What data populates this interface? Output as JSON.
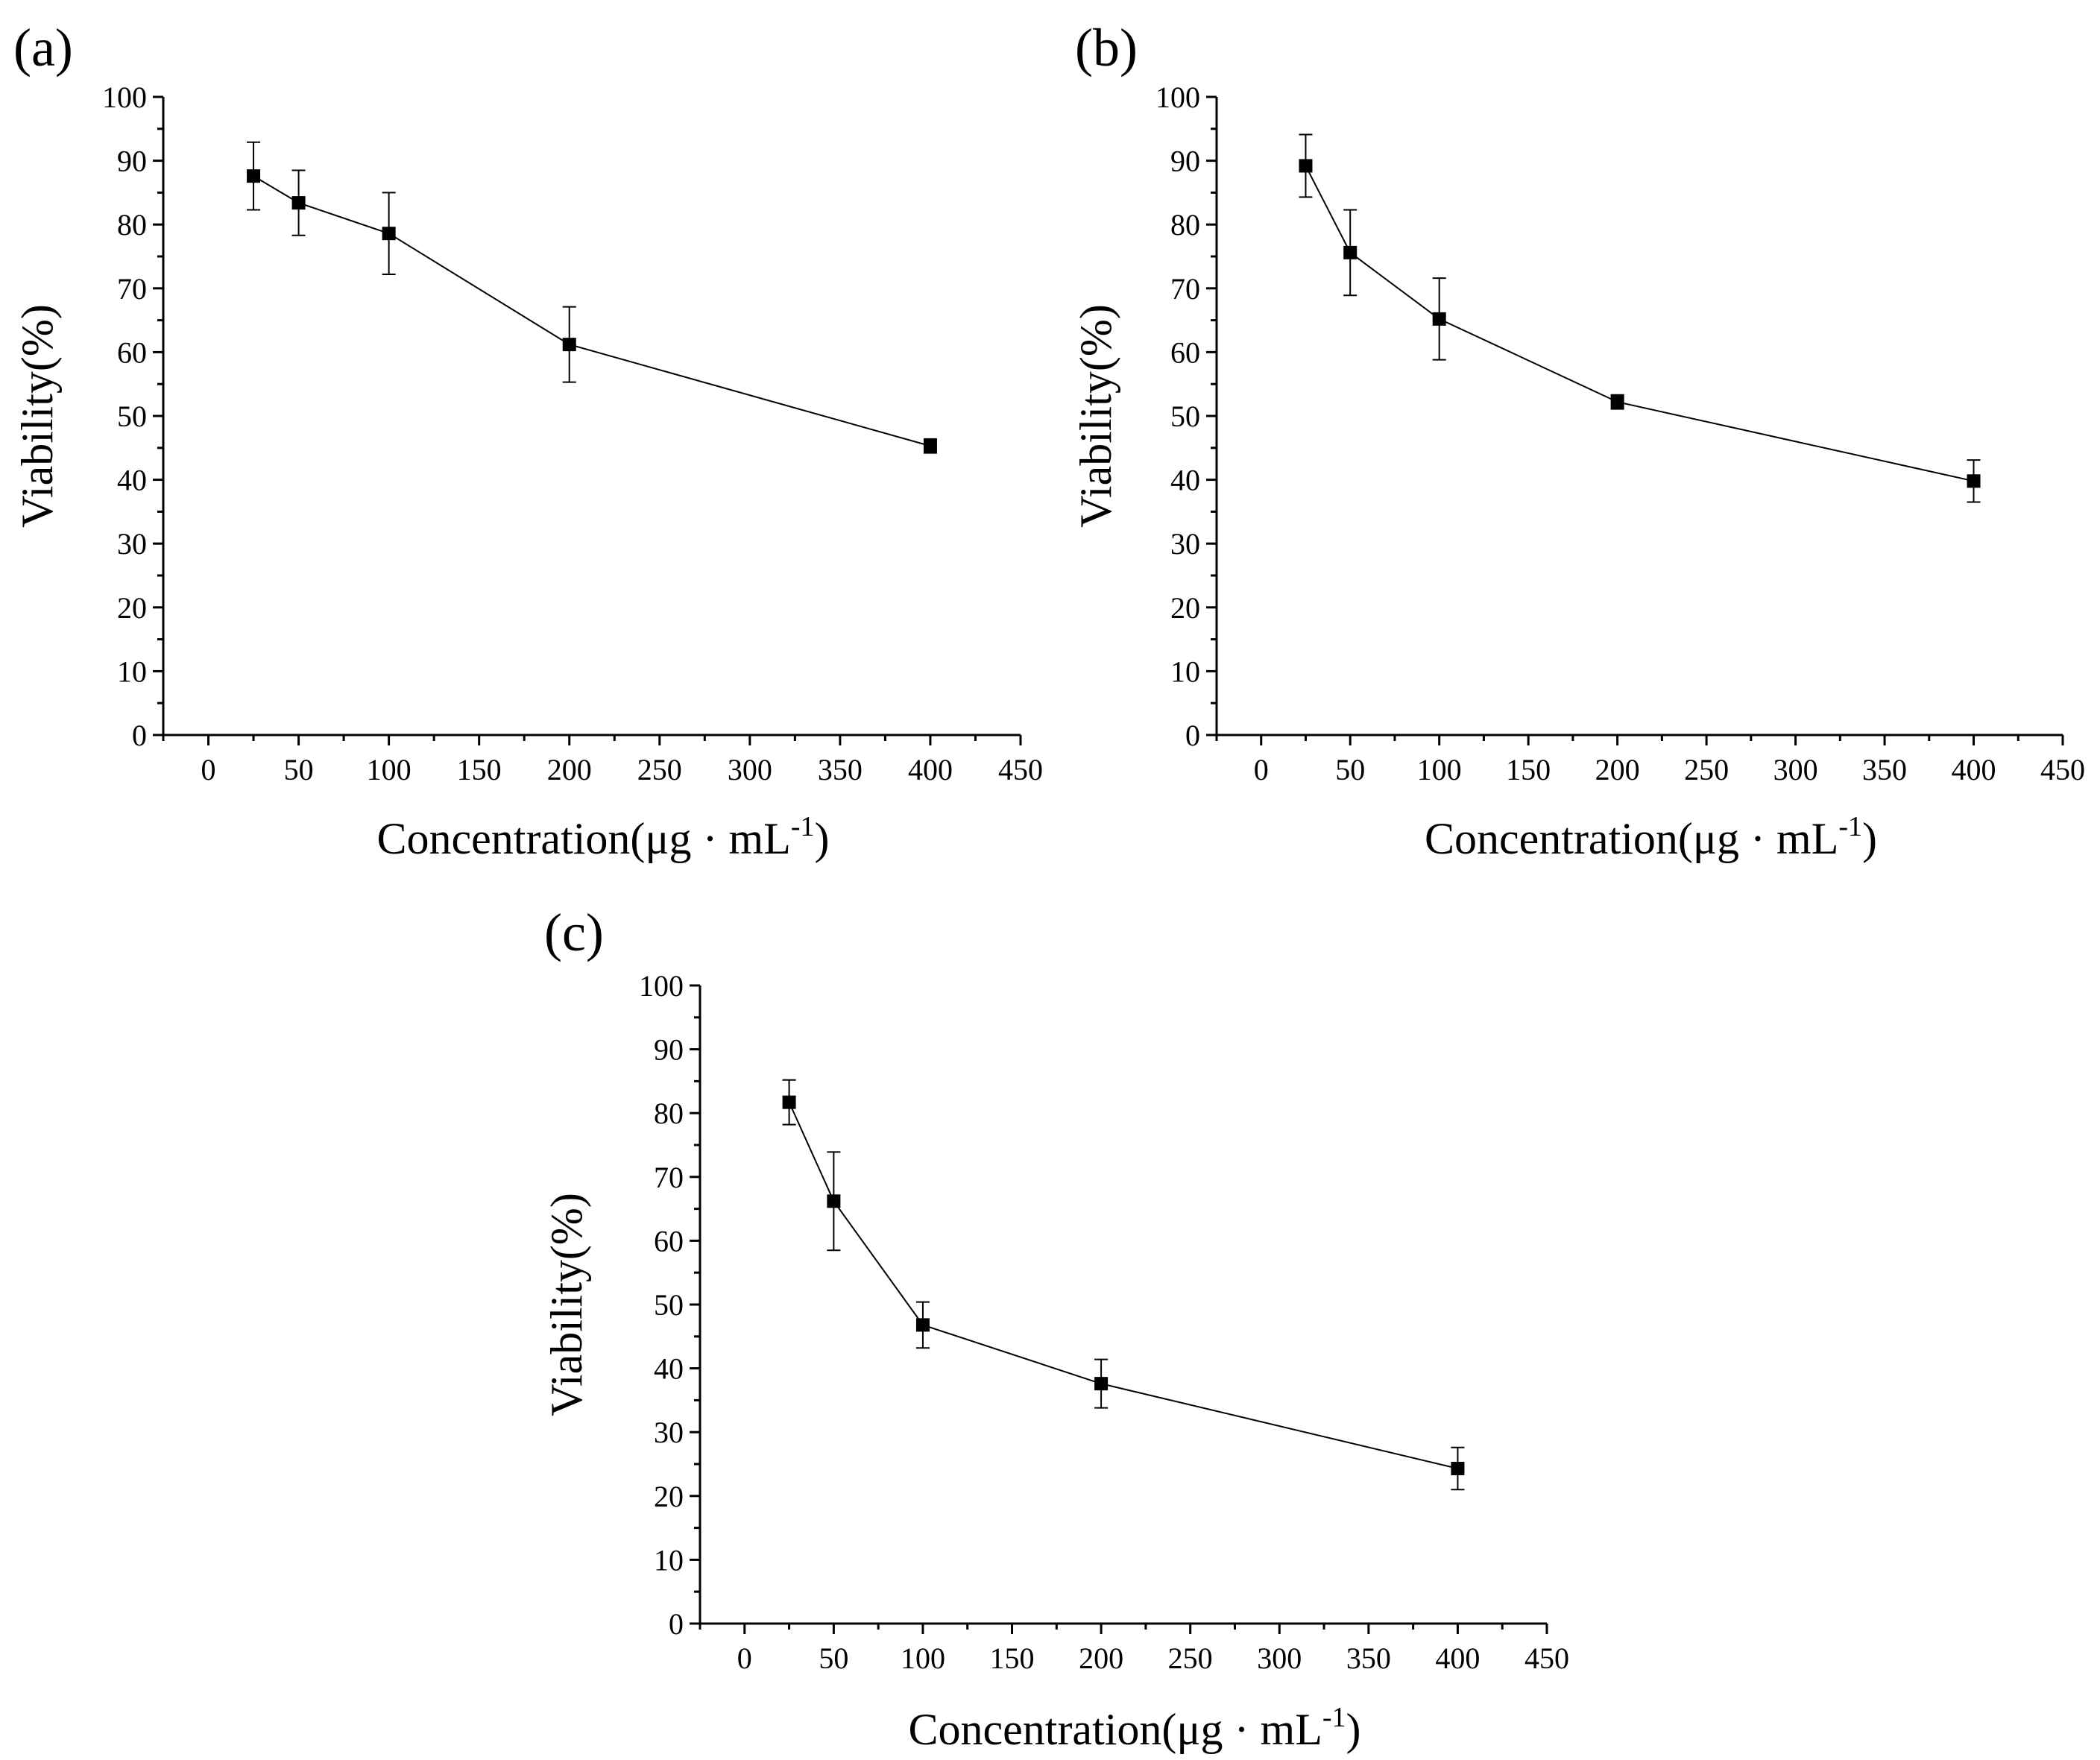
{
  "chart_data": [
    {
      "type": "line",
      "panel": "(a)",
      "xlabel_main": "Concentration(μg · mL",
      "xlabel_sup": "-1",
      "xlabel_end": ")",
      "ylabel": "Viability(%)",
      "xlim": [
        -25,
        450
      ],
      "ylim": [
        0,
        100
      ],
      "xticks": [
        0,
        50,
        100,
        150,
        200,
        250,
        300,
        350,
        400,
        450
      ],
      "yticks": [
        0,
        10,
        20,
        30,
        40,
        50,
        60,
        70,
        80,
        90,
        100
      ],
      "series": [
        {
          "x": [
            25,
            50,
            100,
            200,
            400
          ],
          "y": [
            87.6,
            83.4,
            78.6,
            61.2,
            45.3
          ],
          "err": [
            5.3,
            5.1,
            6.4,
            5.9,
            1.1
          ]
        }
      ]
    },
    {
      "type": "line",
      "panel": "(b)",
      "xlabel_main": "Concentration(μg · mL",
      "xlabel_sup": "-1",
      "xlabel_end": ")",
      "ylabel": "Viability(%)",
      "xlim": [
        -25,
        450
      ],
      "ylim": [
        0,
        100
      ],
      "xticks": [
        0,
        50,
        100,
        150,
        200,
        250,
        300,
        350,
        400,
        450
      ],
      "yticks": [
        0,
        10,
        20,
        30,
        40,
        50,
        60,
        70,
        80,
        90,
        100
      ],
      "series": [
        {
          "x": [
            25,
            50,
            100,
            200,
            400
          ],
          "y": [
            89.2,
            75.6,
            65.2,
            52.2,
            39.8
          ],
          "err": [
            4.9,
            6.7,
            6.4,
            1.1,
            3.3
          ]
        }
      ]
    },
    {
      "type": "line",
      "panel": "(c)",
      "xlabel_main": "Concentration(μg · mL",
      "xlabel_sup": "-1",
      "xlabel_end": ")",
      "ylabel": "Viability(%)",
      "xlim": [
        -25,
        450
      ],
      "ylim": [
        0,
        100
      ],
      "xticks": [
        0,
        50,
        100,
        150,
        200,
        250,
        300,
        350,
        400,
        450
      ],
      "yticks": [
        0,
        10,
        20,
        30,
        40,
        50,
        60,
        70,
        80,
        90,
        100
      ],
      "series": [
        {
          "x": [
            25,
            50,
            100,
            200,
            400
          ],
          "y": [
            81.7,
            66.2,
            46.8,
            37.6,
            24.3
          ],
          "err": [
            3.5,
            7.7,
            3.6,
            3.8,
            3.3
          ]
        }
      ]
    }
  ]
}
